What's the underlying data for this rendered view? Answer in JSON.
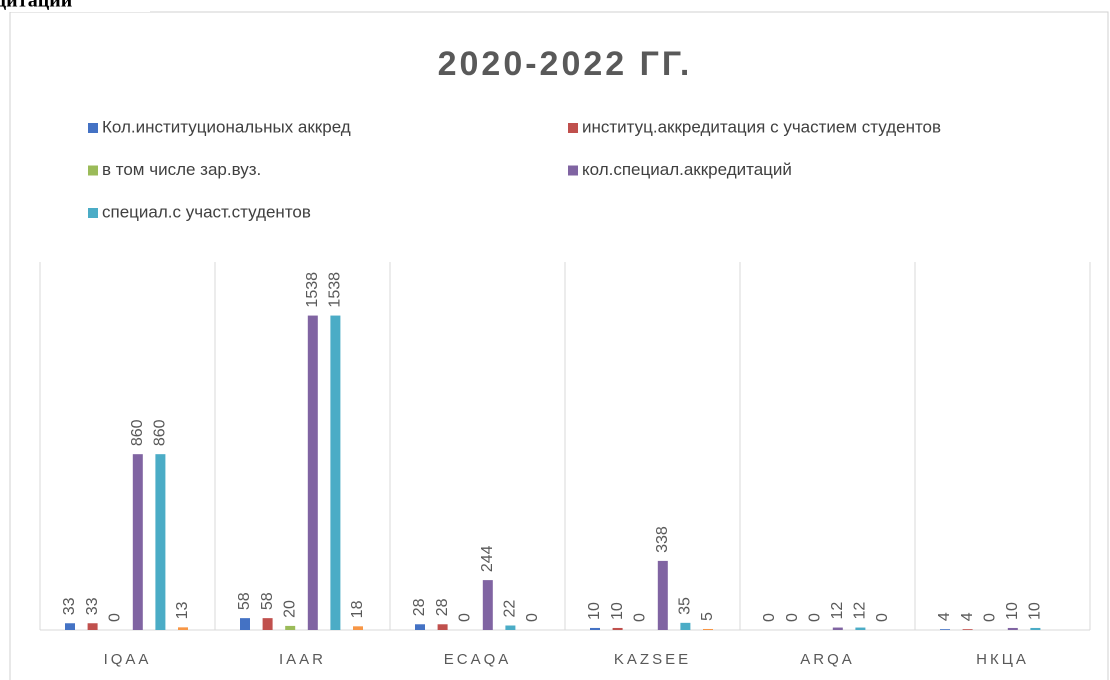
{
  "heading": "дитации",
  "chart_data": {
    "type": "bar",
    "title": "2020-2022 ГГ.",
    "categories": [
      "IQAA",
      "IAAR",
      "ECAQA",
      "KAZSEE",
      "ARQA",
      "НКЦА"
    ],
    "series": [
      {
        "name": "Кол.институциональных аккред",
        "color": "#4472c4",
        "values": [
          33,
          58,
          28,
          10,
          0,
          4
        ]
      },
      {
        "name": "институц.аккредитация с участием студентов",
        "color": "#c0504d",
        "values": [
          33,
          58,
          28,
          10,
          0,
          4
        ]
      },
      {
        "name": "в том числе зар.вуз.",
        "color": "#9bbb59",
        "values": [
          0,
          20,
          0,
          0,
          0,
          0
        ]
      },
      {
        "name": "кол.специал.аккредитаций",
        "color": "#8064a2",
        "values": [
          860,
          1538,
          244,
          338,
          12,
          10
        ]
      },
      {
        "name": "специал.с участ.студентов",
        "color": "#4bacc6",
        "values": [
          860,
          1538,
          22,
          35,
          12,
          10
        ]
      },
      {
        "color": "#f79646",
        "values": [
          13,
          18,
          0,
          5,
          0,
          null
        ]
      }
    ],
    "ylim": [
      0,
      1800
    ],
    "grid": true,
    "legend": "top"
  }
}
